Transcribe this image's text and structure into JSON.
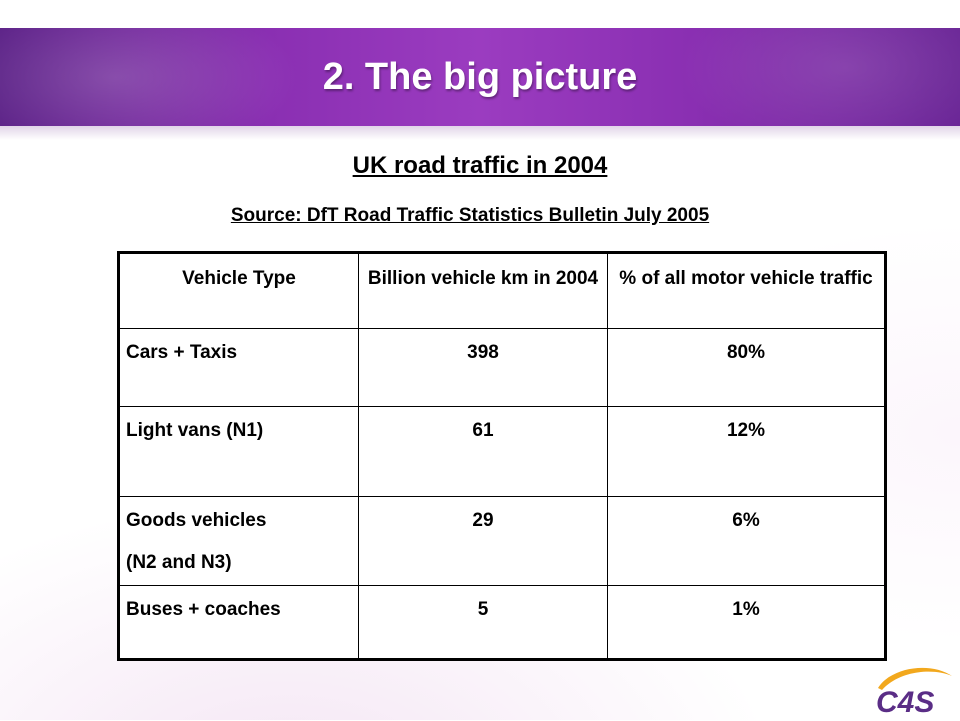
{
  "slide": {
    "title": "2. The big picture",
    "subtitle": "UK road traffic in 2004",
    "source": "Source: DfT Road Traffic Statistics Bulletin July 2005"
  },
  "table": {
    "headers": [
      "Vehicle Type",
      "Billion vehicle km in 2004",
      "% of all motor vehicle traffic"
    ],
    "rows": [
      {
        "type": "Cars + Taxis",
        "type_line2": "",
        "km": "398",
        "pct": "80%"
      },
      {
        "type": "Light vans (N1)",
        "type_line2": "",
        "km": "61",
        "pct": "12%"
      },
      {
        "type": "Goods vehicles",
        "type_line2": "(N2 and N3)",
        "km": "29",
        "pct": "6%"
      },
      {
        "type": "Buses + coaches",
        "type_line2": "",
        "km": "5",
        "pct": "1%"
      }
    ]
  },
  "logo": {
    "text": "C4S",
    "colors": {
      "text": "#5a2d86",
      "swoosh": "#f2a81d"
    }
  },
  "colors": {
    "header_band": "#8a2fb2",
    "title_text": "#ffffff"
  }
}
